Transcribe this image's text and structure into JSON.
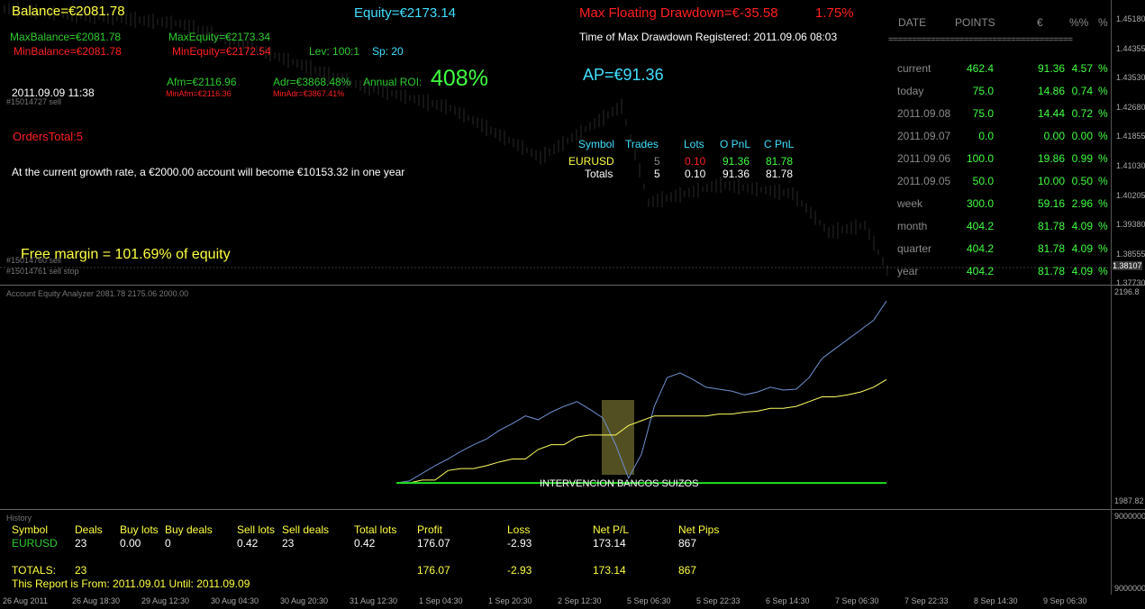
{
  "header": {
    "balance": "Balance=€2081.78",
    "equity": "Equity=€2173.14",
    "max_floating_drawdown": "Max Floating Drawdown=€-35.58",
    "max_floating_drawdown_pct": "1.75%",
    "max_drawdown_time": "Time of Max Drawdown Registered: 2011.09.06 08:03",
    "max_balance": "MaxBalance=€2081.78",
    "max_equity": "MaxEquity=€2173.34",
    "min_balance": "MinBalance=€2081.78",
    "min_equity": "MinEquity=€2172.54",
    "leverage": "Lev: 100:1",
    "spread": "Sp: 20",
    "afm": "Afm=€2116.96",
    "adr": "Adr=€3868.48%",
    "min_afm": "MinAfm=€2116.36",
    "min_adr": "MinAdr=€3867.41%",
    "annual_roi_label": "Annual ROI:",
    "annual_roi_value": "408%",
    "datetime": "2011.09.09 11:38",
    "order_tag_1": "#15014727 sell",
    "orders_total": "OrdersTotal:5",
    "growth_text": "At the current growth rate, a €2000.00 account will become €10153.32 in one year",
    "free_margin": "Free margin = 101.69% of equity",
    "order_tag_2": "#15014760 sell",
    "order_tag_3": "#15014761 sell stop",
    "ap": "AP=€91.36"
  },
  "symbols_table": {
    "headers": [
      "Symbol",
      "Trades",
      "Lots",
      "O PnL",
      "C PnL"
    ],
    "rows": [
      {
        "symbol": "EURUSD",
        "trades": "5",
        "lots": "0.10",
        "opnl": "91.36",
        "cpnl": "81.78"
      },
      {
        "symbol": "Totals",
        "trades": "5",
        "lots": "0.10",
        "opnl": "91.36",
        "cpnl": "81.78"
      }
    ]
  },
  "period_table": {
    "headers": [
      "DATE",
      "POINTS",
      "€",
      "%%",
      "%"
    ],
    "separator": "=======================================",
    "rows": [
      {
        "date": "current",
        "points": "462.4",
        "eur": "91.36",
        "pct": "4.57",
        "sign": "%"
      },
      {
        "date": "today",
        "points": "75.0",
        "eur": "14.86",
        "pct": "0.74",
        "sign": "%"
      },
      {
        "date": "2011.09.08",
        "points": "75.0",
        "eur": "14.44",
        "pct": "0.72",
        "sign": "%"
      },
      {
        "date": "2011.09.07",
        "points": "0.0",
        "eur": "0.00",
        "pct": "0.00",
        "sign": "%"
      },
      {
        "date": "2011.09.06",
        "points": "100.0",
        "eur": "19.86",
        "pct": "0.99",
        "sign": "%"
      },
      {
        "date": "2011.09.05",
        "points": "50.0",
        "eur": "10.00",
        "pct": "0.50",
        "sign": "%"
      },
      {
        "date": "week",
        "points": "300.0",
        "eur": "59.16",
        "pct": "2.96",
        "sign": "%"
      },
      {
        "date": "month",
        "points": "404.2",
        "eur": "81.78",
        "pct": "4.09",
        "sign": "%"
      },
      {
        "date": "quarter",
        "points": "404.2",
        "eur": "81.78",
        "pct": "4.09",
        "sign": "%"
      },
      {
        "date": "year",
        "points": "404.2",
        "eur": "81.78",
        "pct": "4.09",
        "sign": "%"
      }
    ]
  },
  "price_scale": [
    "1.45180",
    "1.44355",
    "1.43530",
    "1.42680",
    "1.41855",
    "1.41030",
    "1.40205",
    "1.39380",
    "1.38555",
    "1.37730"
  ],
  "current_price": "1.38107",
  "indicator": {
    "title": "Account Equity Analyzer 2081.78 2175.06 2000.00",
    "scale_top": "2196.8",
    "scale_bottom": "1987.82",
    "annotation": "INTERVENCION BANCOS SUIZOS"
  },
  "history": {
    "title": "History",
    "headers": [
      "Symbol",
      "Deals",
      "Buy lots",
      "Buy deals",
      "Sell lots",
      "Sell deals",
      "Total lots",
      "Profit",
      "Loss",
      "Net P/L",
      "Net Pips"
    ],
    "row": [
      "EURUSD",
      "23",
      "0.00",
      "0",
      "0.42",
      "23",
      "0.42",
      "176.07",
      "-2.93",
      "173.14",
      "867"
    ],
    "totals_label": "TOTALS:",
    "totals_deals": "23",
    "totals_profit": "176.07",
    "totals_loss": "-2.93",
    "totals_net": "173.14",
    "totals_pips": "867",
    "report_text": "This Report is From:  2011.09.01  Until:   2011.09.09",
    "scale_top": "9000000",
    "scale_bottom": "9000000"
  },
  "time_axis": [
    "26 Aug 2011",
    "26 Aug 18:30",
    "29 Aug 12:30",
    "30 Aug 04:30",
    "30 Aug 20:30",
    "31 Aug 12:30",
    "1 Sep 04:30",
    "1 Sep 20:30",
    "2 Sep 12:30",
    "5 Sep 06:30",
    "5 Sep 22:33",
    "6 Sep 14:30",
    "7 Sep 06:30",
    "7 Sep 22:33",
    "8 Sep 14:30",
    "9 Sep 06:30"
  ],
  "chart_data": {
    "type": "line",
    "title": "Account Equity Analyzer 2081.78 2175.06 2000.00",
    "xlabel": "",
    "ylabel": "",
    "ylim": [
      1987.82,
      2196.8
    ],
    "series": [
      {
        "name": "",
        "color": "#7090d0",
        "values": [
          2000,
          2002,
          2010,
          2018,
          2025,
          2033,
          2040,
          2046,
          2055,
          2062,
          2070,
          2066,
          2074,
          2080,
          2085,
          2077,
          2068,
          2040,
          2005,
          2030,
          2080,
          2110,
          2115,
          2108,
          2100,
          2098,
          2096,
          2092,
          2095,
          2100,
          2097,
          2098,
          2110,
          2130,
          2140,
          2150,
          2160,
          2170,
          2190
        ]
      },
      {
        "name": "",
        "color": "#ffff60",
        "values": [
          2000,
          2000,
          2003,
          2003,
          2013,
          2015,
          2015,
          2018,
          2022,
          2025,
          2025,
          2035,
          2040,
          2040,
          2048,
          2050,
          2050,
          2050,
          2060,
          2065,
          2070,
          2070,
          2070,
          2070,
          2070,
          2072,
          2072,
          2074,
          2075,
          2078,
          2078,
          2080,
          2085,
          2090,
          2090,
          2092,
          2095,
          2100,
          2108
        ]
      },
      {
        "name": "",
        "color": "#20e020",
        "values": [
          2000,
          2000,
          2000,
          2000,
          2000,
          2000,
          2000,
          2000,
          2000,
          2000,
          2000,
          2000,
          2000,
          2000,
          2000,
          2000,
          2000,
          2000,
          2000,
          2000,
          2000,
          2000,
          2000,
          2000,
          2000,
          2000,
          2000,
          2000,
          2000,
          2000,
          2000,
          2000,
          2000,
          2000,
          2000,
          2000,
          2000,
          2000,
          2000
        ]
      }
    ]
  },
  "colors": {
    "background": "#000000",
    "balance": "#ffff40",
    "equity": "#40e0ff",
    "drawdown": "#ff2020",
    "positive": "#40ff40",
    "label": "#8a8a8a"
  }
}
